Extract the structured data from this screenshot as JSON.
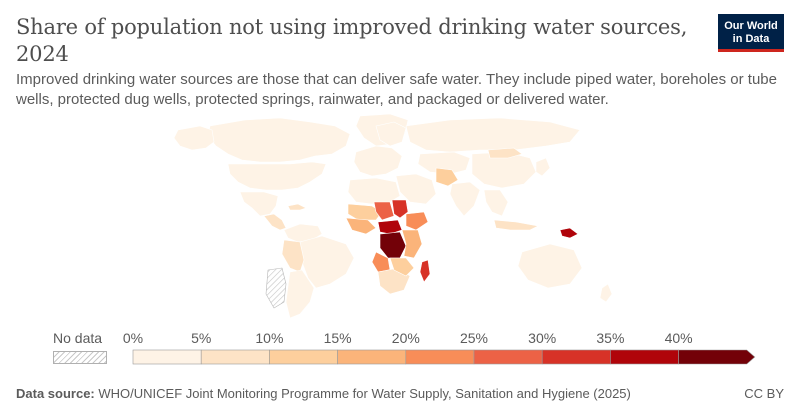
{
  "header": {
    "title": "Share of population not using improved drinking water sources, 2024",
    "subtitle": "Improved drinking water sources are those that can deliver safe water. They include piped water, boreholes or tube wells, protected dug wells, protected springs, rainwater, and packaged or delivered water.",
    "logo_line1": "Our World",
    "logo_line2": "in Data",
    "logo_bg": "#002147",
    "logo_accent": "#ce261e"
  },
  "legend": {
    "nodata_label": "No data",
    "ticks": [
      "0%",
      "5%",
      "10%",
      "15%",
      "20%",
      "25%",
      "30%",
      "35%",
      "40%"
    ],
    "colors": [
      "#fef3e6",
      "#fde3c6",
      "#fdcf9d",
      "#fbb47a",
      "#f88d58",
      "#ec6246",
      "#d73227",
      "#b0040a",
      "#730108"
    ]
  },
  "footer": {
    "source_label": "Data source:",
    "source_text": "WHO/UNICEF Joint Monitoring Programme for Water Supply, Sanitation and Hygiene (2025)",
    "license": "CC BY"
  }
}
